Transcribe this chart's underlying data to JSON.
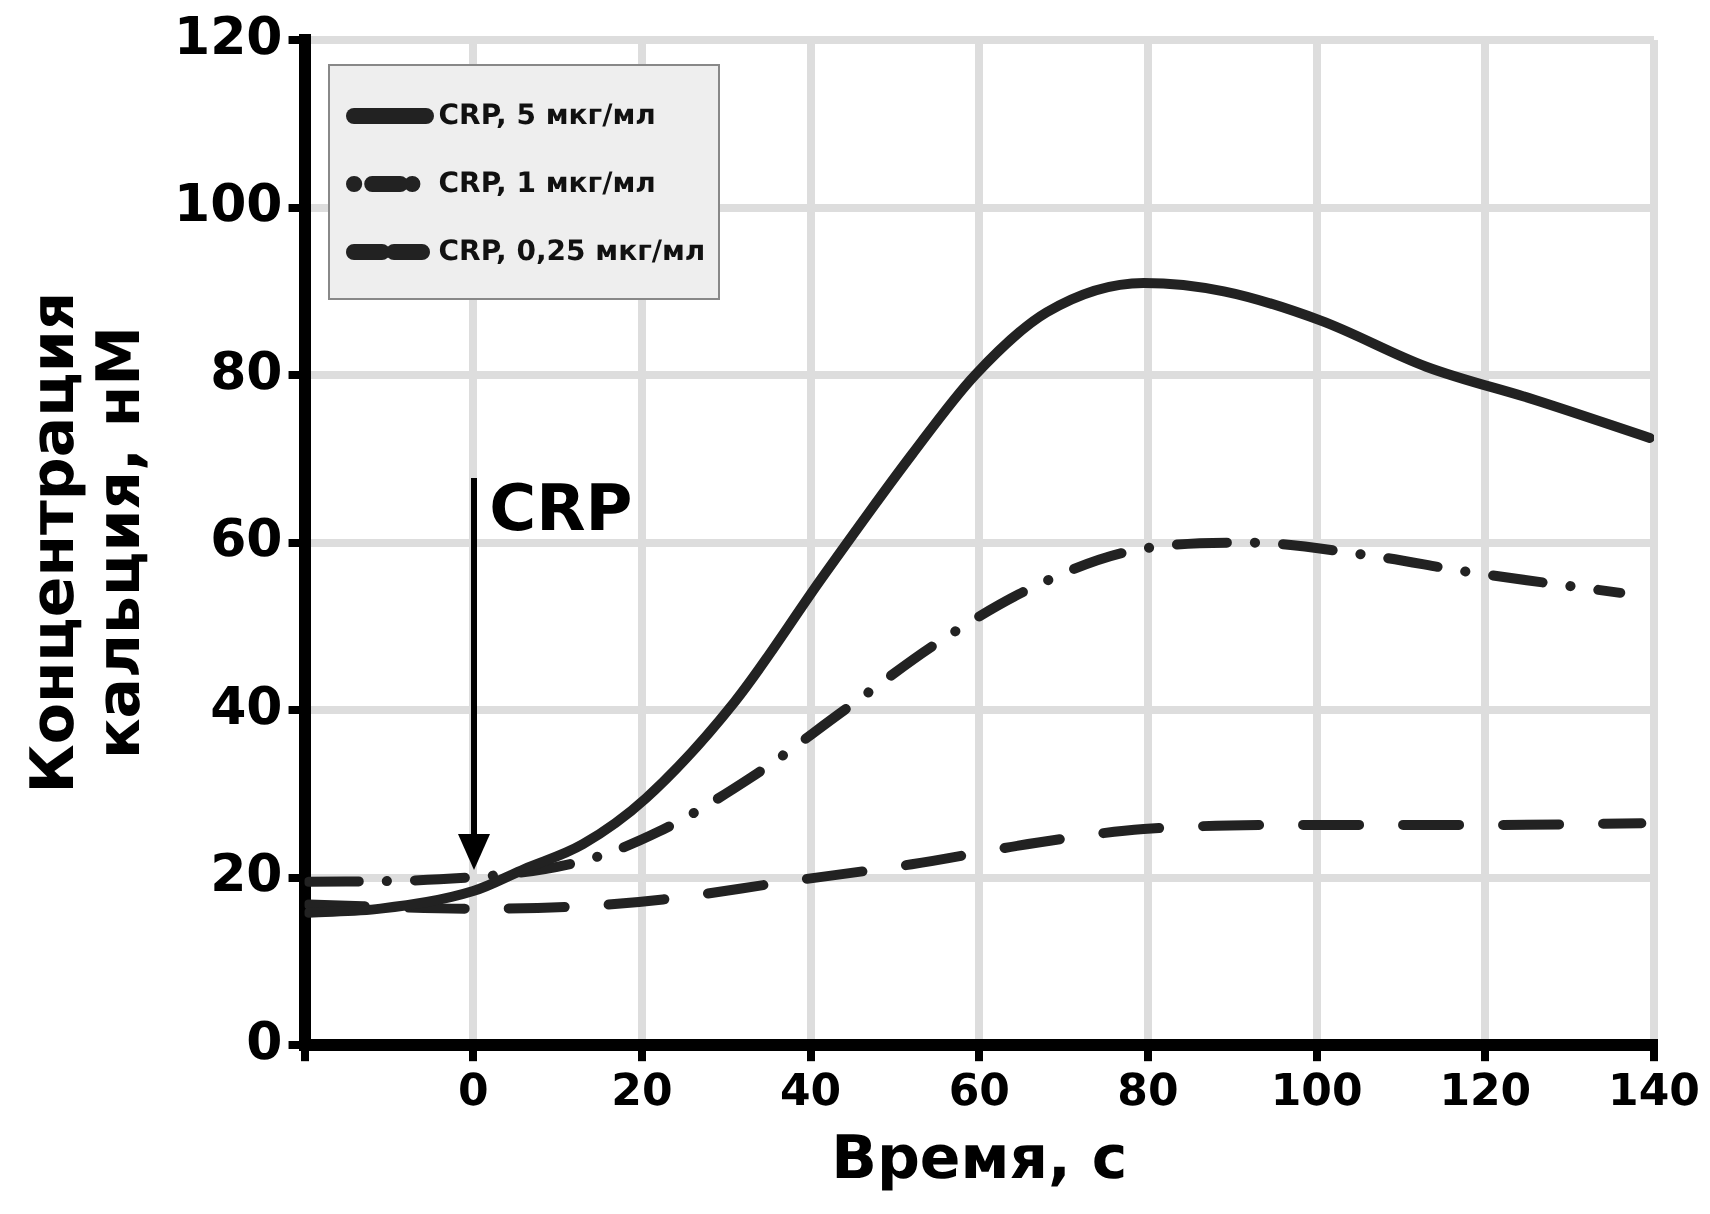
{
  "chart_data": {
    "type": "line",
    "xlabel": "Время, с",
    "ylabel": "Концентрация кальция, нМ",
    "xlim": [
      -20,
      140
    ],
    "xticks": [
      {
        "value": -20,
        "label": null
      },
      0,
      20,
      40,
      60,
      80,
      100,
      120,
      140
    ],
    "ylim": [
      0,
      120
    ],
    "yticks": [
      0,
      20,
      40,
      60,
      80,
      100,
      120
    ],
    "grid": true,
    "legend": "top left",
    "ref_lines": [
      {
        "axis": "x",
        "value": 0,
        "label": "CRP",
        "color": "#000000"
      }
    ],
    "series": [
      {
        "name": "CRP, 5 мкг/мл",
        "color": "#222222",
        "line_style": "solid",
        "x": [
          -19.5,
          -11,
          0,
          6,
          13,
          20.5,
          31,
          41.5,
          52,
          59.5,
          68,
          79.5,
          89,
          100.5,
          113,
          126,
          139.5
        ],
        "values": [
          15.8,
          16.3,
          18.4,
          21,
          24,
          29.5,
          41,
          56,
          70.5,
          80,
          87.5,
          91,
          90,
          86.5,
          81,
          77,
          72.5
        ]
      },
      {
        "name": "CRP, 1 мкг/мл",
        "color": "#222222",
        "line_style": "dashdot",
        "x": [
          -19.5,
          -4,
          13,
          22,
          33,
          44,
          55,
          66,
          78,
          92,
          106,
          118,
          136
        ],
        "values": [
          19.5,
          19.8,
          22,
          25.5,
          32,
          40,
          48,
          54.5,
          59,
          60,
          58.5,
          56.5,
          54
        ]
      },
      {
        "name": "CRP, 0,25 мкг/мл",
        "color": "#222222",
        "line_style": "dashed",
        "x": [
          -19.5,
          0,
          13,
          22.5,
          37,
          52,
          67,
          79.5,
          100.5,
          121.5,
          138.5
        ],
        "values": [
          16.8,
          16.3,
          16.6,
          17.4,
          19.5,
          21.6,
          24.2,
          25.8,
          26.3,
          26.3,
          26.5
        ]
      }
    ]
  }
}
